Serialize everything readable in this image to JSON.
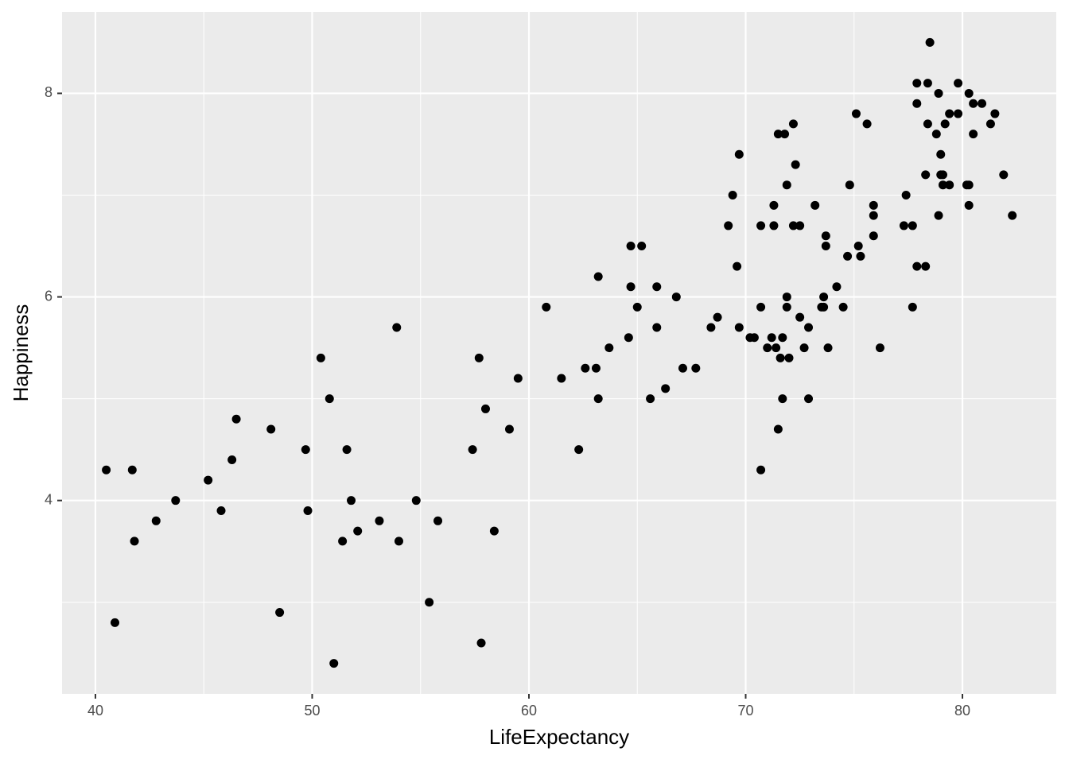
{
  "chart_data": {
    "type": "scatter",
    "x_label": "LifeExpectancy",
    "y_label": "Happiness",
    "color": "#000000",
    "panel_color": "#ebebeb",
    "grid": true,
    "xlim": [
      38.46,
      84.33
    ],
    "ylim": [
      2.1,
      8.8
    ],
    "xticks": [
      40,
      50,
      60,
      70,
      80
    ],
    "yticks": [
      4,
      6,
      8
    ],
    "minor_xticks": [
      45,
      55,
      65,
      75
    ],
    "minor_yticks": [
      3,
      5,
      7
    ],
    "x": [
      40.5,
      40.9,
      41.7,
      41.8,
      42.8,
      43.7,
      45.2,
      45.8,
      46.3,
      46.5,
      48.1,
      48.5,
      49.7,
      49.8,
      50.4,
      50.8,
      51.0,
      51.4,
      51.6,
      51.8,
      52.1,
      53.1,
      53.9,
      54.0,
      54.8,
      55.4,
      55.8,
      57.4,
      57.7,
      57.8,
      58.0,
      58.4,
      59.1,
      59.5,
      60.8,
      61.5,
      62.3,
      62.6,
      63.1,
      63.2,
      63.2,
      63.7,
      64.6,
      64.7,
      64.7,
      65.0,
      65.2,
      65.6,
      65.9,
      65.9,
      66.3,
      66.8,
      67.1,
      67.7,
      68.4,
      68.7,
      69.2,
      69.4,
      69.6,
      69.7,
      69.7,
      70.2,
      70.4,
      70.7,
      70.7,
      70.7,
      71.0,
      71.2,
      71.3,
      71.3,
      71.4,
      71.5,
      71.5,
      71.6,
      71.7,
      71.7,
      71.8,
      71.9,
      71.9,
      71.9,
      72.0,
      72.2,
      72.2,
      72.3,
      72.5,
      72.5,
      72.7,
      72.9,
      72.9,
      73.2,
      73.5,
      73.6,
      73.6,
      73.7,
      73.7,
      73.8,
      74.2,
      74.5,
      74.7,
      74.8,
      75.1,
      75.2,
      75.3,
      75.6,
      75.9,
      75.9,
      75.9,
      76.2,
      77.3,
      77.4,
      77.7,
      77.7,
      77.9,
      77.9,
      77.9,
      78.3,
      78.3,
      78.4,
      78.4,
      78.5,
      78.8,
      78.9,
      78.9,
      79.0,
      79.0,
      79.1,
      79.1,
      79.2,
      79.4,
      79.4,
      79.8,
      79.8,
      80.2,
      80.3,
      80.3,
      80.3,
      80.5,
      80.5,
      80.9,
      81.3,
      81.5,
      81.9,
      82.3
    ],
    "y": [
      4.3,
      2.8,
      4.3,
      3.6,
      3.8,
      4.0,
      4.2,
      3.9,
      4.4,
      4.8,
      4.7,
      2.9,
      4.5,
      3.9,
      5.4,
      5.0,
      2.4,
      3.6,
      4.5,
      4.0,
      3.7,
      3.8,
      5.7,
      3.6,
      4.0,
      3.0,
      3.8,
      4.5,
      5.4,
      2.6,
      4.9,
      3.7,
      4.7,
      5.2,
      5.9,
      5.2,
      4.5,
      5.3,
      5.3,
      5.0,
      6.2,
      5.5,
      5.6,
      6.5,
      6.1,
      5.9,
      6.5,
      5.0,
      6.1,
      5.7,
      5.1,
      6.0,
      5.3,
      5.3,
      5.7,
      5.8,
      6.7,
      7.0,
      6.3,
      7.4,
      5.7,
      5.6,
      5.6,
      4.3,
      5.9,
      6.7,
      5.5,
      5.6,
      6.9,
      6.7,
      5.5,
      4.7,
      7.6,
      5.4,
      5.6,
      5.0,
      7.6,
      7.1,
      6.0,
      5.9,
      5.4,
      7.7,
      6.7,
      7.3,
      6.7,
      5.8,
      5.5,
      5.7,
      5.0,
      6.9,
      5.9,
      6.0,
      5.9,
      6.6,
      6.5,
      5.5,
      6.1,
      5.9,
      6.4,
      7.1,
      7.8,
      6.5,
      6.4,
      7.7,
      6.9,
      6.8,
      6.6,
      5.5,
      6.7,
      7.0,
      6.7,
      5.9,
      8.1,
      7.9,
      6.3,
      6.3,
      7.2,
      8.1,
      7.7,
      8.5,
      7.6,
      8.0,
      6.8,
      7.4,
      7.2,
      7.2,
      7.1,
      7.7,
      7.8,
      7.1,
      8.1,
      7.8,
      7.1,
      8.0,
      7.1,
      6.9,
      7.9,
      7.6,
      7.9,
      7.7,
      7.8,
      7.2,
      6.8
    ]
  }
}
